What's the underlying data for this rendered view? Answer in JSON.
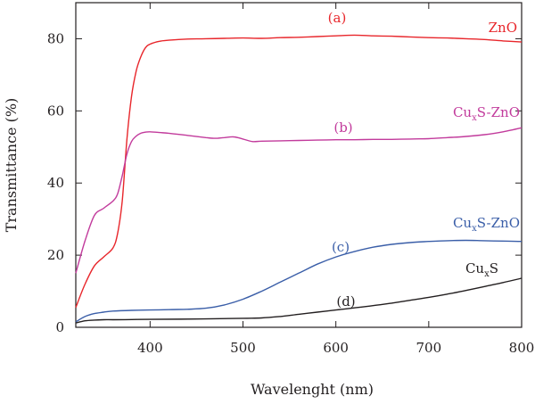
{
  "chart_data": {
    "type": "line",
    "xlabel": "Wavelenght (nm)",
    "ylabel": "Transmittance (%)",
    "xlim": [
      320,
      800
    ],
    "ylim": [
      0,
      90
    ],
    "x_ticks": [
      400,
      500,
      600,
      700,
      800
    ],
    "y_ticks": [
      0,
      20,
      40,
      60,
      80
    ],
    "grid": false,
    "legend": "none",
    "series": [
      {
        "name": "ZnO",
        "tag": "(a)",
        "color": "#e8262b",
        "x": [
          320,
          330,
          340,
          350,
          360,
          365,
          370,
          375,
          380,
          385,
          390,
          395,
          400,
          410,
          420,
          440,
          460,
          480,
          500,
          520,
          540,
          560,
          580,
          600,
          620,
          640,
          660,
          680,
          700,
          720,
          740,
          760,
          780,
          800
        ],
        "y": [
          5.5,
          12,
          17,
          19.5,
          22,
          26,
          35,
          52,
          64,
          71,
          75,
          77.5,
          78.5,
          79.3,
          79.6,
          79.9,
          80.0,
          80.1,
          80.2,
          80.1,
          80.3,
          80.4,
          80.6,
          80.8,
          81.0,
          80.8,
          80.7,
          80.5,
          80.3,
          80.2,
          80.0,
          79.8,
          79.4,
          79.1
        ]
      },
      {
        "name": "CuxS-ZnO",
        "tag": "(b)",
        "color": "#c23b9c",
        "x": [
          320,
          330,
          340,
          350,
          360,
          365,
          370,
          375,
          380,
          385,
          390,
          395,
          400,
          410,
          420,
          440,
          460,
          470,
          480,
          490,
          500,
          510,
          520,
          540,
          560,
          580,
          600,
          620,
          640,
          660,
          680,
          700,
          720,
          740,
          760,
          780,
          800
        ],
        "y": [
          15,
          24,
          31,
          33,
          35,
          37,
          42,
          48,
          51.5,
          53,
          53.8,
          54.1,
          54.2,
          54,
          53.8,
          53.2,
          52.6,
          52.4,
          52.6,
          52.8,
          52.2,
          51.5,
          51.6,
          51.7,
          51.8,
          51.9,
          52.0,
          52.0,
          52.1,
          52.1,
          52.2,
          52.3,
          52.6,
          52.9,
          53.4,
          54.2,
          55.3
        ]
      },
      {
        "name": "CuxS-ZnO",
        "tag": "(c)",
        "color": "#3a5ea8",
        "x": [
          320,
          330,
          340,
          350,
          360,
          380,
          400,
          420,
          440,
          460,
          480,
          500,
          520,
          540,
          560,
          580,
          600,
          620,
          640,
          660,
          680,
          700,
          720,
          740,
          760,
          780,
          800
        ],
        "y": [
          1.5,
          3,
          3.8,
          4.2,
          4.5,
          4.7,
          4.8,
          4.9,
          5.0,
          5.3,
          6.2,
          7.8,
          10,
          12.5,
          15,
          17.5,
          19.5,
          21,
          22.2,
          23,
          23.5,
          23.8,
          24.0,
          24.1,
          24.0,
          23.9,
          23.8
        ]
      },
      {
        "name": "CuxS",
        "tag": "(d)",
        "color": "#231f20",
        "x": [
          320,
          330,
          340,
          350,
          360,
          380,
          400,
          450,
          500,
          520,
          540,
          560,
          580,
          600,
          620,
          640,
          660,
          680,
          700,
          720,
          740,
          760,
          780,
          800
        ],
        "y": [
          1.2,
          1.8,
          2.0,
          2.1,
          2.1,
          2.15,
          2.2,
          2.3,
          2.5,
          2.6,
          3.0,
          3.6,
          4.2,
          4.8,
          5.4,
          6.0,
          6.7,
          7.5,
          8.3,
          9.2,
          10.2,
          11.3,
          12.4,
          13.6
        ]
      }
    ]
  },
  "labels": {
    "a_tag": "(a)",
    "a_name": "ZnO",
    "b_tag": "(b)",
    "b_name_main": "Cu",
    "b_name_sub": "x",
    "b_name_rest": "S-ZnO",
    "c_tag": "(c)",
    "c_name_main": "Cu",
    "c_name_sub": "x",
    "c_name_rest": "S-ZnO",
    "d_tag": "(d)",
    "d_name_main": "Cu",
    "d_name_sub": "x",
    "d_name_rest": "S"
  },
  "colors": {
    "axis": "#231f20",
    "zno": "#e8262b",
    "cuxs_zno_b": "#c23b9c",
    "cuxs_zno_c": "#3a5ea8",
    "cuxs": "#231f20"
  }
}
